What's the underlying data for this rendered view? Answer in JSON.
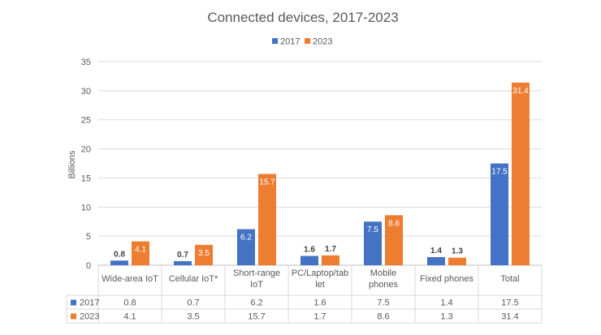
{
  "chart_data": {
    "type": "bar",
    "title": "Connected devices, 2017-2023",
    "ylabel": "Billions",
    "xlabel": "",
    "ylim": [
      0,
      35
    ],
    "yticks": [
      0,
      5,
      10,
      15,
      20,
      25,
      30,
      35
    ],
    "grid": true,
    "legend_position": "top",
    "categories": [
      [
        "Wide-area IoT"
      ],
      [
        "Cellular IoT*"
      ],
      [
        "Short-range",
        "IoT"
      ],
      [
        "PC/Laptop/tab",
        "let"
      ],
      [
        "Mobile",
        "phones"
      ],
      [
        "Fixed phones"
      ],
      [
        "Total"
      ]
    ],
    "series": [
      {
        "name": "2017",
        "color": "#4472c4",
        "values": [
          0.8,
          0.7,
          6.2,
          1.6,
          7.5,
          1.4,
          17.5
        ],
        "labels": [
          "0.8",
          "0.7",
          "6.2",
          "1.6",
          "7.5",
          "1.4",
          "17.5"
        ]
      },
      {
        "name": "2023",
        "color": "#ed7d31",
        "values": [
          4.1,
          3.5,
          15.7,
          1.7,
          8.6,
          1.3,
          31.4
        ],
        "labels": [
          "4.1",
          "3.5",
          "15.7",
          "1.7",
          "8.6",
          "1.3",
          "31.4"
        ]
      }
    ],
    "data_table": true
  }
}
